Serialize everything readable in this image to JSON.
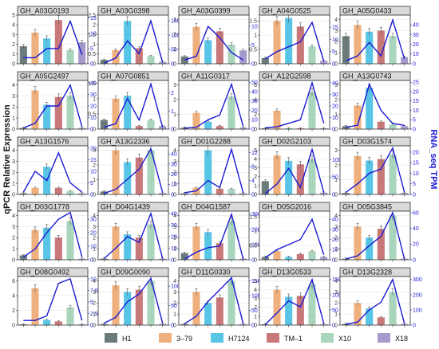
{
  "figure": {
    "ylabel_left": "qPCR Relative Expression",
    "ylabel_right": "RNA_seq TPM",
    "colors": {
      "line": "#1a1ad4",
      "frame": "#333333",
      "header_bg": "#d9d9d9",
      "grid": "#e6e6e6",
      "error": "#555555"
    }
  },
  "chart_data": {
    "type": "bar",
    "categories": [
      "H1",
      "3–79",
      "H7124",
      "TM–1",
      "X10",
      "X18"
    ],
    "series_colors": [
      "#6b7b7b",
      "#efb07e",
      "#58c5e6",
      "#c9787a",
      "#a9d5bd",
      "#a59acb"
    ],
    "legend": [
      "H1",
      "3–79",
      "H7124",
      "TM–1",
      "X10",
      "X18"
    ],
    "legend_position": "bottom",
    "grid": true,
    "panels": [
      {
        "gene": "GH_A03G0193",
        "qpcr": [
          1.8,
          3.2,
          2.6,
          4.5,
          1.4,
          2.2
        ],
        "ylim_left": [
          0,
          5
        ],
        "ticks_left": [
          0,
          1,
          2,
          3,
          4,
          5
        ],
        "tpm": [
          2,
          2,
          5,
          5,
          14,
          3
        ],
        "ylim_right": [
          0,
          16
        ],
        "ticks_right": [
          0,
          5,
          10,
          15
        ]
      },
      {
        "gene": "GH_A03G0398",
        "qpcr": [
          0.2,
          0.7,
          2.2,
          0.8,
          0.4,
          0.1
        ],
        "ylim_left": [
          0,
          2.5
        ],
        "ticks_left": [
          0,
          0.5,
          1,
          1.5,
          2,
          2.5
        ],
        "tpm": [
          2,
          20,
          80,
          35,
          150,
          5
        ],
        "ylim_right": [
          0,
          170
        ],
        "ticks_right": [
          0,
          50,
          100,
          150
        ]
      },
      {
        "gene": "GH_A03G0399",
        "qpcr": [
          0.5,
          2.5,
          1.6,
          2.2,
          1.3,
          0.9
        ],
        "ylim_left": [
          0,
          3.3
        ],
        "ticks_left": [
          0,
          1,
          2,
          3
        ],
        "tpm": [
          1,
          2,
          10,
          7,
          3,
          1
        ],
        "ylim_right": [
          0,
          13
        ],
        "ticks_right": [
          0,
          5,
          10
        ]
      },
      {
        "gene": "GH_A04G0525",
        "qpcr": [
          0.2,
          1.5,
          1.6,
          1.3,
          0.6,
          0.1
        ],
        "ylim_left": [
          0,
          1.7
        ],
        "ticks_left": [
          0,
          0.5,
          1,
          1.5
        ],
        "tpm": [
          2,
          5,
          7,
          9,
          17,
          1
        ],
        "ylim_right": [
          0,
          20
        ],
        "ticks_right": [
          0,
          5,
          10,
          15
        ]
      },
      {
        "gene": "GH_A05G0433",
        "qpcr": [
          2.5,
          3.5,
          2.9,
          3.0,
          2.5,
          0.6
        ],
        "ylim_left": [
          0,
          4.4
        ],
        "ticks_left": [
          0,
          1,
          2,
          3,
          4
        ],
        "tpm": [
          3,
          8,
          22,
          8,
          45,
          5
        ],
        "ylim_right": [
          0,
          50
        ],
        "ticks_right": [
          0,
          10,
          20,
          30,
          40
        ]
      },
      {
        "gene": "GH_A05G2497",
        "qpcr": [
          0.1,
          3.5,
          2.2,
          2.9,
          3.0,
          0.1
        ],
        "ylim_left": [
          0,
          4.4
        ],
        "ticks_left": [
          0,
          1,
          2,
          3,
          4
        ],
        "tpm": [
          1,
          5,
          20,
          20,
          38,
          2
        ],
        "ylim_right": [
          0,
          42
        ],
        "ticks_right": [
          0,
          10,
          20,
          30,
          40
        ]
      },
      {
        "gene": "GH_A07G0851",
        "qpcr": [
          0.3,
          1.0,
          1.1,
          0.1,
          0.3,
          0.1
        ],
        "ylim_left": [
          0,
          1.6
        ],
        "ticks_left": [
          0,
          0.5,
          1,
          1.5
        ],
        "tpm": [
          0.1,
          0.3,
          1.7,
          0.5,
          2.5,
          0.1
        ],
        "ylim_right": [
          0,
          2.7
        ],
        "ticks_right": [
          0,
          1,
          2
        ]
      },
      {
        "gene": "GH_A11G0317",
        "qpcr": [
          0.1,
          1.1,
          0.5,
          0.2,
          2.2,
          0.1
        ],
        "ylim_left": [
          0,
          3.3
        ],
        "ticks_left": [
          0,
          1,
          2,
          3
        ],
        "tpm": [
          1,
          2,
          10,
          15,
          48,
          3
        ],
        "ylim_right": [
          0,
          52
        ],
        "ticks_right": [
          0,
          10,
          20,
          30,
          40,
          50
        ]
      },
      {
        "gene": "GH_A12G2598",
        "qpcr": [
          0.1,
          2.5,
          0.1,
          0.1,
          5.0,
          0.1
        ],
        "ylim_left": [
          0,
          6.6
        ],
        "ticks_left": [
          0,
          2,
          4,
          6
        ],
        "tpm": [
          1,
          2,
          5,
          8,
          40,
          5
        ],
        "ylim_right": [
          0,
          42
        ],
        "ticks_right": [
          0,
          10,
          20,
          30,
          40
        ]
      },
      {
        "gene": "GH_A13G0743",
        "qpcr": [
          0.2,
          1.6,
          2.8,
          0.5,
          0.3,
          0.2
        ],
        "ylim_left": [
          0,
          3.3
        ],
        "ticks_left": [
          0,
          1,
          2,
          3
        ],
        "tpm": [
          1,
          2,
          24,
          10,
          3,
          2
        ],
        "ylim_right": [
          0,
          26
        ],
        "ticks_right": [
          0,
          5,
          10,
          15,
          20,
          25
        ]
      },
      {
        "gene": "GH_A13G1576",
        "qpcr": [
          0.1,
          0.6,
          2.5,
          0.6,
          0.3,
          0.1
        ],
        "ylim_left": [
          0,
          4.4
        ],
        "ticks_left": [
          0,
          1,
          2,
          3,
          4
        ],
        "tpm": [
          1,
          10,
          6,
          18,
          5,
          1
        ],
        "ylim_right": [
          0,
          21
        ],
        "ticks_right": [
          0,
          5,
          10,
          15,
          20
        ]
      },
      {
        "gene": "GH_A13G2336",
        "qpcr": [
          0.2,
          3.0,
          2.2,
          2.5,
          3.0,
          0.1
        ],
        "ylim_left": [
          0,
          3.3
        ],
        "ticks_left": [
          0,
          1,
          2,
          3
        ],
        "tpm": [
          1,
          5,
          15,
          25,
          45,
          2
        ],
        "ylim_right": [
          0,
          48
        ],
        "ticks_right": [
          0,
          10,
          20,
          30,
          40
        ]
      },
      {
        "gene": "GH_D01G2288",
        "qpcr": [
          0.1,
          0.6,
          4.0,
          0.5,
          0.5,
          0.1
        ],
        "ylim_left": [
          0,
          4.4
        ],
        "ticks_left": [
          0,
          1,
          2,
          3,
          4
        ],
        "tpm": [
          0.5,
          1,
          4,
          2,
          13,
          0.5
        ],
        "ylim_right": [
          0,
          14
        ],
        "ticks_right": [
          0,
          4,
          8,
          12
        ]
      },
      {
        "gene": "GH_D02G2103",
        "qpcr": [
          1.5,
          4.4,
          3.8,
          3.4,
          4.0,
          0.2
        ],
        "ylim_left": [
          0,
          5.5
        ],
        "ticks_left": [
          0,
          1,
          2,
          3,
          4,
          5
        ],
        "tpm": [
          2,
          30,
          75,
          20,
          130,
          5
        ],
        "ylim_right": [
          0,
          140
        ],
        "ticks_right": [
          0,
          50,
          100
        ]
      },
      {
        "gene": "GH_D03G1574",
        "qpcr": [
          0.1,
          2.6,
          2.3,
          2.4,
          2.7,
          0.1
        ],
        "ylim_left": [
          0,
          3.3
        ],
        "ticks_left": [
          0,
          1,
          2,
          3
        ],
        "tpm": [
          1,
          5,
          10,
          12,
          22,
          1
        ],
        "ylim_right": [
          0,
          23
        ],
        "ticks_right": [
          0,
          5,
          10,
          15,
          20
        ]
      },
      {
        "gene": "GH_D03G1778",
        "qpcr": [
          0.4,
          2.7,
          2.9,
          2.0,
          3.5,
          0.1
        ],
        "ylim_left": [
          0,
          4.4
        ],
        "ticks_left": [
          0,
          1,
          2,
          3,
          4
        ],
        "tpm": [
          2,
          8,
          20,
          30,
          35,
          2
        ],
        "ylim_right": [
          0,
          36
        ],
        "ticks_right": [
          0,
          10,
          20,
          30
        ]
      },
      {
        "gene": "GH_D04G1439",
        "qpcr": [
          0.1,
          3.0,
          2.3,
          2.0,
          3.2,
          0.1
        ],
        "ylim_left": [
          0,
          4.4
        ],
        "ticks_left": [
          0,
          1,
          2,
          3,
          4
        ],
        "tpm": [
          1,
          10,
          20,
          15,
          40,
          1
        ],
        "ylim_right": [
          0,
          42
        ],
        "ticks_right": [
          0,
          10,
          20,
          30,
          40
        ]
      },
      {
        "gene": "GH_D04G1587",
        "qpcr": [
          0.6,
          3.0,
          2.5,
          1.5,
          3.5,
          0.1
        ],
        "ylim_left": [
          0,
          4.4
        ],
        "ticks_left": [
          0,
          1,
          2,
          3,
          4
        ],
        "tpm": [
          5,
          50,
          80,
          90,
          300,
          5
        ],
        "ylim_right": [
          0,
          320
        ],
        "ticks_right": [
          0,
          100,
          200,
          300
        ]
      },
      {
        "gene": "GH_D05G2016",
        "qpcr": [
          0.1,
          0.3,
          0.1,
          0.2,
          0.3,
          0.1
        ],
        "ylim_left": [
          0,
          1.7
        ],
        "ticks_left": [
          0,
          0.5,
          1,
          1.5
        ],
        "tpm": [
          2,
          10,
          15,
          20,
          40,
          5
        ],
        "ylim_right": [
          0,
          48
        ],
        "ticks_right": [
          0,
          10,
          20,
          30,
          40
        ]
      },
      {
        "gene": "GH_D05G3845",
        "qpcr": [
          0.1,
          3.0,
          2.0,
          2.8,
          4.0,
          0.1
        ],
        "ylim_left": [
          0,
          4.4
        ],
        "ticks_left": [
          0,
          1,
          2,
          3,
          4
        ],
        "tpm": [
          1,
          5,
          18,
          30,
          60,
          1
        ],
        "ylim_right": [
          0,
          62
        ],
        "ticks_right": [
          0,
          20,
          40,
          60
        ]
      },
      {
        "gene": "GH_D08G0492",
        "qpcr": [
          0.1,
          5.0,
          0.7,
          0.5,
          2.4,
          0.1
        ],
        "ylim_left": [
          0,
          6.6
        ],
        "ticks_left": [
          0,
          2,
          4,
          6
        ],
        "tpm": [
          1,
          1,
          2,
          9,
          10,
          1
        ],
        "ylim_right": [
          0,
          10.5
        ],
        "ticks_right": [
          0,
          2.5,
          5,
          7.5,
          10
        ]
      },
      {
        "gene": "GH_D09G0090",
        "qpcr": [
          0.1,
          3.6,
          3.0,
          3.2,
          4.0,
          0.1
        ],
        "ylim_left": [
          0,
          4.4
        ],
        "ticks_left": [
          0,
          1,
          2,
          3,
          4
        ],
        "tpm": [
          5,
          20,
          60,
          80,
          120,
          5
        ],
        "ylim_right": [
          0,
          125
        ],
        "ticks_right": [
          0,
          50,
          100
        ]
      },
      {
        "gene": "GH_D11G0330",
        "qpcr": [
          0.1,
          3.0,
          2.0,
          2.5,
          4.0,
          0.1
        ],
        "ylim_left": [
          0,
          4.4
        ],
        "ticks_left": [
          0,
          1,
          2,
          3,
          4
        ],
        "tpm": [
          5,
          30,
          80,
          120,
          160,
          5
        ],
        "ylim_right": [
          0,
          165
        ],
        "ticks_right": [
          0,
          50,
          100,
          150
        ]
      },
      {
        "gene": "GH_D13G0533",
        "qpcr": [
          0.1,
          4.0,
          3.2,
          3.3,
          4.6,
          0.1
        ],
        "ylim_left": [
          0,
          5.5
        ],
        "ticks_left": [
          0,
          1,
          2,
          3,
          4,
          5
        ],
        "tpm": [
          2,
          40,
          80,
          60,
          150,
          5
        ],
        "ylim_right": [
          0,
          160
        ],
        "ticks_right": [
          0,
          50,
          100,
          150
        ]
      },
      {
        "gene": "GH_D13G2328",
        "qpcr": [
          0.1,
          2.0,
          1.5,
          0.7,
          3.0,
          0.1
        ],
        "ylim_left": [
          0,
          4.4
        ],
        "ticks_left": [
          0,
          1,
          2,
          3,
          4
        ],
        "tpm": [
          5,
          20,
          100,
          150,
          300,
          10
        ],
        "ylim_right": [
          0,
          320
        ],
        "ticks_right": [
          0,
          100,
          200,
          300
        ]
      }
    ]
  }
}
